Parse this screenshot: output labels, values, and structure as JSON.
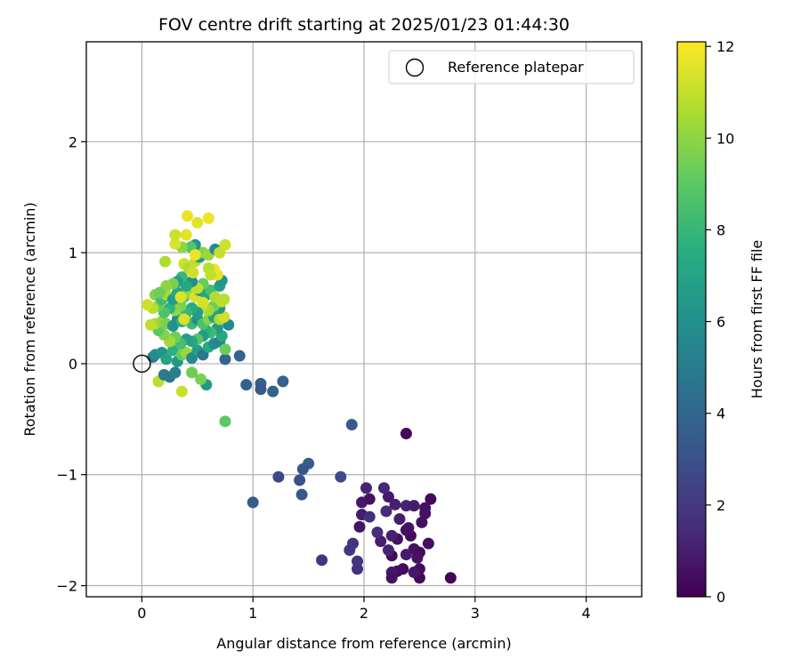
{
  "chart_data": {
    "type": "scatter",
    "title": "FOV centre drift starting at 2025/01/23 01:44:30",
    "xlabel": "Angular distance from reference (arcmin)",
    "ylabel": "Rotation from reference (arcmin)",
    "xlim": [
      -0.5,
      4.5
    ],
    "ylim": [
      -2.1,
      2.9
    ],
    "xticks": [
      0,
      1,
      2,
      3,
      4
    ],
    "yticks": [
      -2,
      -1,
      0,
      1,
      2
    ],
    "grid": true,
    "legend": {
      "placement": "top-right",
      "entries": [
        "Reference platepar"
      ]
    },
    "reference_point": {
      "x": 0,
      "y": 0,
      "label": "Reference platepar"
    },
    "colorbar": {
      "label": "Hours from first FF file",
      "colormap": "viridis",
      "range": [
        0,
        12.1
      ],
      "ticks": [
        0,
        2,
        4,
        6,
        8,
        10,
        12
      ]
    },
    "series": [
      {
        "color_label": "Hours from first FF file",
        "points": [
          [
            2.78,
            -1.93,
            0.1
          ],
          [
            2.38,
            -0.63,
            0.2
          ],
          [
            2.6,
            -1.22,
            0.3
          ],
          [
            2.58,
            -1.62,
            0.4
          ],
          [
            2.55,
            -1.35,
            0.5
          ],
          [
            2.55,
            -1.3,
            0.6
          ],
          [
            2.52,
            -1.43,
            0.5
          ],
          [
            2.5,
            -1.7,
            0.3
          ],
          [
            2.5,
            -1.93,
            0.2
          ],
          [
            2.5,
            -1.85,
            0.4
          ],
          [
            2.45,
            -1.67,
            0.6
          ],
          [
            2.45,
            -1.88,
            0.8
          ],
          [
            2.42,
            -1.55,
            0.3
          ],
          [
            2.4,
            -1.48,
            0.7
          ],
          [
            2.38,
            -1.72,
            0.9
          ],
          [
            2.38,
            -1.5,
            0.5
          ],
          [
            2.35,
            -1.85,
            0.2
          ],
          [
            2.32,
            -1.4,
            1.0
          ],
          [
            2.3,
            -1.58,
            0.6
          ],
          [
            2.3,
            -1.87,
            0.4
          ],
          [
            2.28,
            -1.27,
            1.1
          ],
          [
            2.25,
            -1.73,
            0.3
          ],
          [
            2.25,
            -1.88,
            0.8
          ],
          [
            2.25,
            -1.93,
            0.5
          ],
          [
            2.22,
            -1.68,
            1.2
          ],
          [
            2.22,
            -1.2,
            0.9
          ],
          [
            2.2,
            -1.33,
            1.4
          ],
          [
            2.18,
            -1.12,
            1.3
          ],
          [
            2.15,
            -1.6,
            1.0
          ],
          [
            2.12,
            -1.52,
            1.5
          ],
          [
            2.05,
            -1.22,
            0.6
          ],
          [
            2.02,
            -1.12,
            1.2
          ],
          [
            1.98,
            -1.25,
            0.8
          ],
          [
            1.98,
            -1.36,
            1.0
          ],
          [
            1.96,
            -1.47,
            0.7
          ],
          [
            1.94,
            -1.85,
            1.6
          ],
          [
            1.94,
            -1.78,
            1.8
          ],
          [
            1.9,
            -1.62,
            1.7
          ],
          [
            1.87,
            -1.68,
            1.9
          ],
          [
            1.62,
            -1.77,
            1.8
          ],
          [
            2.05,
            -1.38,
            1.6
          ],
          [
            2.38,
            -1.28,
            1.2
          ],
          [
            2.25,
            -1.55,
            1.1
          ],
          [
            2.45,
            -1.28,
            0.9
          ],
          [
            2.48,
            -1.75,
            0.6
          ],
          [
            1.89,
            -0.55,
            3.4
          ],
          [
            1.79,
            -1.02,
            2.8
          ],
          [
            1.5,
            -0.9,
            3.5
          ],
          [
            1.45,
            -0.95,
            3.2
          ],
          [
            1.42,
            -1.05,
            2.9
          ],
          [
            1.44,
            -1.18,
            3.3
          ],
          [
            1.23,
            -1.02,
            2.6
          ],
          [
            1.0,
            -1.25,
            3.6
          ],
          [
            1.27,
            -0.16,
            3.8
          ],
          [
            1.18,
            -0.25,
            3.9
          ],
          [
            1.07,
            -0.18,
            3.7
          ],
          [
            1.07,
            -0.23,
            3.4
          ],
          [
            0.94,
            -0.19,
            3.8
          ],
          [
            0.88,
            0.07,
            3.9
          ],
          [
            0.75,
            0.04,
            4.0
          ],
          [
            0.75,
            -0.52,
            9.0
          ],
          [
            0.58,
            -0.19,
            6.5
          ],
          [
            0.53,
            -0.14,
            9.6
          ],
          [
            0.45,
            -0.08,
            9.4
          ],
          [
            0.36,
            -0.25,
            11.1
          ],
          [
            0.15,
            -0.16,
            10.8
          ],
          [
            0.2,
            -0.1,
            5.0
          ],
          [
            0.25,
            -0.12,
            4.9
          ],
          [
            0.3,
            -0.08,
            5.2
          ],
          [
            0.1,
            0.06,
            4.6
          ],
          [
            0.12,
            0.08,
            5.8
          ],
          [
            0.18,
            0.1,
            6.2
          ],
          [
            0.22,
            0.04,
            7.0
          ],
          [
            0.28,
            0.12,
            7.6
          ],
          [
            0.32,
            0.02,
            6.4
          ],
          [
            0.36,
            0.08,
            9.2
          ],
          [
            0.4,
            0.1,
            10.2
          ],
          [
            0.45,
            0.05,
            5.6
          ],
          [
            0.5,
            0.12,
            6.8
          ],
          [
            0.55,
            0.08,
            4.8
          ],
          [
            0.6,
            0.15,
            7.4
          ],
          [
            0.65,
            0.18,
            6.0
          ],
          [
            0.7,
            0.2,
            5.4
          ],
          [
            0.72,
            0.25,
            7.2
          ],
          [
            0.75,
            0.13,
            9.3
          ],
          [
            0.78,
            0.35,
            5.6
          ],
          [
            0.68,
            0.32,
            6.4
          ],
          [
            0.62,
            0.28,
            8.2
          ],
          [
            0.58,
            0.3,
            7.8
          ],
          [
            0.55,
            0.25,
            6.6
          ],
          [
            0.5,
            0.22,
            8.8
          ],
          [
            0.45,
            0.2,
            7.2
          ],
          [
            0.4,
            0.22,
            6.8
          ],
          [
            0.35,
            0.18,
            8.4
          ],
          [
            0.3,
            0.24,
            9.4
          ],
          [
            0.25,
            0.2,
            10.4
          ],
          [
            0.2,
            0.26,
            9.8
          ],
          [
            0.15,
            0.3,
            9.0
          ],
          [
            0.12,
            0.36,
            10.6
          ],
          [
            0.08,
            0.35,
            10.9
          ],
          [
            0.18,
            0.38,
            10.2
          ],
          [
            0.22,
            0.36,
            9.6
          ],
          [
            0.28,
            0.34,
            6.2
          ],
          [
            0.32,
            0.4,
            5.8
          ],
          [
            0.36,
            0.38,
            7.6
          ],
          [
            0.4,
            0.4,
            10.8
          ],
          [
            0.45,
            0.36,
            8.2
          ],
          [
            0.5,
            0.4,
            6.0
          ],
          [
            0.55,
            0.36,
            8.6
          ],
          [
            0.6,
            0.4,
            9.8
          ],
          [
            0.65,
            0.42,
            7.0
          ],
          [
            0.7,
            0.4,
            10.6
          ],
          [
            0.74,
            0.42,
            11.2
          ],
          [
            0.7,
            0.5,
            6.4
          ],
          [
            0.65,
            0.52,
            9.4
          ],
          [
            0.6,
            0.48,
            10.4
          ],
          [
            0.55,
            0.52,
            11.0
          ],
          [
            0.5,
            0.46,
            6.8
          ],
          [
            0.45,
            0.5,
            7.4
          ],
          [
            0.4,
            0.46,
            8.0
          ],
          [
            0.35,
            0.52,
            9.6
          ],
          [
            0.3,
            0.48,
            10.0
          ],
          [
            0.25,
            0.5,
            7.8
          ],
          [
            0.2,
            0.46,
            8.6
          ],
          [
            0.15,
            0.52,
            9.2
          ],
          [
            0.1,
            0.5,
            10.8
          ],
          [
            0.05,
            0.53,
            11.2
          ],
          [
            0.12,
            0.62,
            9.8
          ],
          [
            0.18,
            0.58,
            8.2
          ],
          [
            0.22,
            0.62,
            10.4
          ],
          [
            0.28,
            0.58,
            6.6
          ],
          [
            0.32,
            0.64,
            7.2
          ],
          [
            0.38,
            0.6,
            8.8
          ],
          [
            0.42,
            0.64,
            10.2
          ],
          [
            0.48,
            0.6,
            11.4
          ],
          [
            0.52,
            0.66,
            6.4
          ],
          [
            0.58,
            0.62,
            7.0
          ],
          [
            0.62,
            0.66,
            8.4
          ],
          [
            0.66,
            0.6,
            10.6
          ],
          [
            0.72,
            0.56,
            11.0
          ],
          [
            0.74,
            0.58,
            10.8
          ],
          [
            0.7,
            0.7,
            6.8
          ],
          [
            0.72,
            0.75,
            6.2
          ],
          [
            0.68,
            0.8,
            11.6
          ],
          [
            0.65,
            0.85,
            11.8
          ],
          [
            0.6,
            0.86,
            10.8
          ],
          [
            0.55,
            0.72,
            9.2
          ],
          [
            0.5,
            0.68,
            11.0
          ],
          [
            0.45,
            0.74,
            6.0
          ],
          [
            0.4,
            0.7,
            7.2
          ],
          [
            0.36,
            0.78,
            8.0
          ],
          [
            0.32,
            0.74,
            6.6
          ],
          [
            0.28,
            0.72,
            9.6
          ],
          [
            0.22,
            0.7,
            10.0
          ],
          [
            0.16,
            0.64,
            9.4
          ],
          [
            0.38,
            0.9,
            11.2
          ],
          [
            0.42,
            0.86,
            10.6
          ],
          [
            0.48,
            0.92,
            11.0
          ],
          [
            0.52,
            0.96,
            6.6
          ],
          [
            0.55,
            1.0,
            9.8
          ],
          [
            0.6,
            0.98,
            10.2
          ],
          [
            0.66,
            1.03,
            5.8
          ],
          [
            0.7,
            1.0,
            11.0
          ],
          [
            0.75,
            1.07,
            11.2
          ],
          [
            0.48,
            1.07,
            6.2
          ],
          [
            0.44,
            1.05,
            8.8
          ],
          [
            0.36,
            1.05,
            10.0
          ],
          [
            0.3,
            1.08,
            11.4
          ],
          [
            0.4,
            1.16,
            11.6
          ],
          [
            0.3,
            1.16,
            11.2
          ],
          [
            0.21,
            0.92,
            10.6
          ],
          [
            0.48,
            0.98,
            11.8
          ],
          [
            0.5,
            1.27,
            11.6
          ],
          [
            0.6,
            1.31,
            11.8
          ],
          [
            0.41,
            1.33,
            11.7
          ],
          [
            0.55,
            0.55,
            11.3
          ],
          [
            0.38,
            0.4,
            11.4
          ],
          [
            0.62,
            0.8,
            11.0
          ],
          [
            0.35,
            0.6,
            11.5
          ],
          [
            0.46,
            0.82,
            11.2
          ]
        ]
      }
    ]
  }
}
